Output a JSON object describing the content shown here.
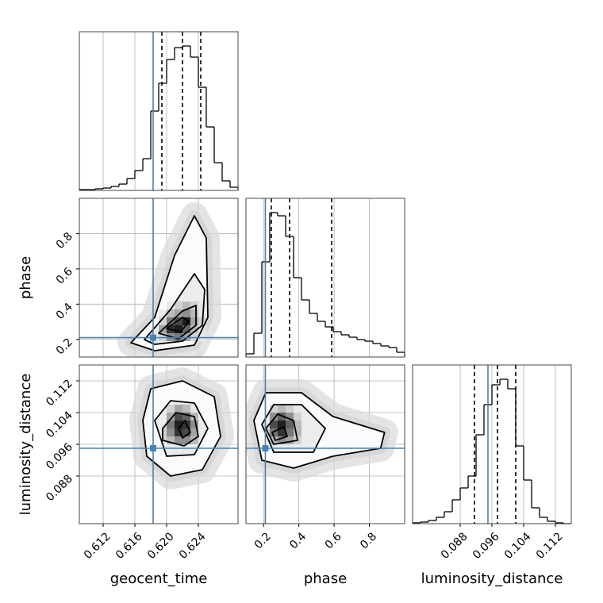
{
  "chart_data": {
    "type": "corner",
    "truth_color": "#4682b4",
    "grid": true,
    "parameters": [
      {
        "name": "geocent_time",
        "lim": [
          0.609,
          0.629
        ],
        "ticks": [
          0.612,
          0.616,
          {
            "value": 0.62,
            "label": "0.620"
          },
          0.624
        ],
        "truth": 0.6183,
        "quantiles": [
          0.6194,
          0.622,
          0.6243
        ],
        "hist_ylim": [
          0,
          200
        ],
        "bins": [
          0.609,
          0.61,
          0.611,
          0.612,
          0.613,
          0.614,
          0.615,
          0.616,
          0.617,
          0.618,
          0.619,
          0.62,
          0.621,
          0.622,
          0.623,
          0.624,
          0.625,
          0.626,
          0.627,
          0.628,
          0.629
        ],
        "counts": [
          1,
          1,
          2,
          3,
          5,
          8,
          15,
          25,
          40,
          100,
          135,
          165,
          180,
          182,
          168,
          130,
          80,
          35,
          12,
          4
        ]
      },
      {
        "name": "phase",
        "lim": [
          0.1,
          1.0
        ],
        "ticks": [
          0.2,
          0.4,
          0.6,
          0.8
        ],
        "truth": 0.21,
        "quantiles": [
          0.244,
          0.3475,
          0.586
        ],
        "hist_ylim": [
          0,
          200
        ],
        "bins": [
          0.1,
          0.145,
          0.19,
          0.235,
          0.28,
          0.325,
          0.37,
          0.415,
          0.46,
          0.505,
          0.55,
          0.595,
          0.64,
          0.685,
          0.73,
          0.775,
          0.82,
          0.865,
          0.91,
          0.955,
          1.0
        ],
        "counts": [
          4,
          30,
          120,
          182,
          178,
          152,
          100,
          72,
          55,
          45,
          38,
          32,
          28,
          25,
          22,
          20,
          17,
          14,
          12,
          6
        ]
      },
      {
        "name": "luminosity_distance",
        "lim": [
          0.076,
          0.116
        ],
        "ticks": [
          0.088,
          0.096,
          0.104,
          0.112
        ],
        "truth": 0.095,
        "quantiles": [
          0.0916,
          0.0974,
          0.102
        ],
        "hist_ylim": [
          0,
          200
        ],
        "bins": [
          0.076,
          0.078,
          0.08,
          0.082,
          0.084,
          0.086,
          0.088,
          0.09,
          0.092,
          0.094,
          0.096,
          0.098,
          0.1,
          0.102,
          0.104,
          0.106,
          0.108,
          0.11,
          0.112,
          0.114,
          0.116
        ],
        "counts": [
          1,
          2,
          4,
          8,
          15,
          30,
          45,
          60,
          112,
          150,
          175,
          182,
          170,
          98,
          55,
          20,
          8,
          3,
          1,
          0
        ]
      }
    ],
    "panels": [
      {
        "x_param": 0,
        "y_param": 1,
        "hist2d": {
          "xedges": [
            0.619,
            0.62,
            0.621,
            0.622,
            0.623,
            0.624,
            0.625
          ],
          "yedges": [
            0.19,
            0.235,
            0.28,
            0.325,
            0.37,
            0.415
          ],
          "counts": [
            [
              0.2,
              0.5,
              0.6,
              0.4,
              0.2,
              0.1
            ],
            [
              0.4,
              0.9,
              1.0,
              0.7,
              0.3,
              0.1
            ],
            [
              0.2,
              0.6,
              0.8,
              1.0,
              0.4,
              0.2
            ],
            [
              0.1,
              0.3,
              0.4,
              0.5,
              0.3,
              0.1
            ],
            [
              0,
              0.1,
              0.2,
              0.3,
              0.2,
              0.1
            ]
          ]
        },
        "contours": [
          {
            "x": [
              0.6155,
              0.6185,
              0.621,
              0.6235,
              0.625,
              0.6252,
              0.6235,
              0.6185
            ],
            "y": [
              0.181,
              0.325,
              0.676,
              0.901,
              0.775,
              0.325,
              0.1675,
              0.136
            ]
          },
          {
            "x": [
              0.6172,
              0.6205,
              0.6235,
              0.6248,
              0.6245,
              0.622,
              0.6185
            ],
            "y": [
              0.199,
              0.37,
              0.5725,
              0.4825,
              0.28,
              0.19,
              0.172
            ]
          },
          {
            "x": [
              0.619,
              0.622,
              0.6237,
              0.6237,
              0.6215
            ],
            "y": [
              0.235,
              0.361,
              0.3925,
              0.28,
              0.2035
            ]
          },
          {
            "x": [
              0.62,
              0.622,
              0.6228,
              0.6218
            ],
            "y": [
              0.262,
              0.325,
              0.3025,
              0.244
            ]
          }
        ]
      },
      {
        "x_param": 0,
        "y_param": 2,
        "hist2d": {
          "xedges": [
            0.62,
            0.621,
            0.622,
            0.623,
            0.624
          ],
          "yedges": [
            0.096,
            0.098,
            0.1,
            0.102,
            0.104,
            0.106
          ],
          "counts": [
            [
              0.3,
              0.5,
              0.5,
              0.3
            ],
            [
              0.5,
              0.9,
              0.8,
              0.4
            ],
            [
              0.6,
              1.0,
              0.9,
              0.5
            ],
            [
              0.4,
              0.8,
              0.7,
              0.3
            ],
            [
              0.2,
              0.4,
              0.3,
              0.1
            ]
          ]
        },
        "contours": [
          {
            "x": [
              0.617,
              0.618,
              0.622,
              0.626,
              0.6268,
              0.6245,
              0.6205,
              0.6175
            ],
            "y": [
              0.102,
              0.11,
              0.112,
              0.108,
              0.098,
              0.0896,
              0.088,
              0.093
            ]
          },
          {
            "x": [
              0.6185,
              0.6205,
              0.6235,
              0.6252,
              0.6235,
              0.62
            ],
            "y": [
              0.102,
              0.107,
              0.1064,
              0.1,
              0.0934,
              0.093
            ]
          },
          {
            "x": [
              0.6195,
              0.6212,
              0.6235,
              0.624,
              0.6222,
              0.6195
            ],
            "y": [
              0.1,
              0.104,
              0.103,
              0.098,
              0.0956,
              0.097
            ]
          },
          {
            "x": [
              0.6215,
              0.6223,
              0.623,
              0.622
            ],
            "y": [
              0.1,
              0.102,
              0.099,
              0.0976
            ]
          }
        ]
      },
      {
        "x_param": 1,
        "y_param": 2,
        "hist2d": {
          "xedges": [
            0.235,
            0.28,
            0.325,
            0.37,
            0.415
          ],
          "yedges": [
            0.096,
            0.098,
            0.1,
            0.102,
            0.104,
            0.106
          ],
          "counts": [
            [
              0.3,
              0.5,
              0.4,
              0.2
            ],
            [
              0.6,
              0.9,
              0.6,
              0.3
            ],
            [
              0.8,
              1.0,
              0.7,
              0.3
            ],
            [
              0.5,
              0.7,
              0.5,
              0.2
            ],
            [
              0.2,
              0.3,
              0.2,
              0.1
            ]
          ]
        },
        "contours": [
          {
            "x": [
              0.145,
              0.2125,
              0.415,
              0.5935,
              0.886,
              0.8635,
              0.5935,
              0.37,
              0.19
            ],
            "y": [
              0.102,
              0.109,
              0.109,
              0.103,
              0.099,
              0.095,
              0.093,
              0.09,
              0.092
            ]
          },
          {
            "x": [
              0.19,
              0.2575,
              0.415,
              0.55,
              0.4825,
              0.2575
            ],
            "y": [
              0.101,
              0.106,
              0.106,
              0.1,
              0.094,
              0.094
            ]
          },
          {
            "x": [
              0.2125,
              0.28,
              0.37,
              0.3925,
              0.2575
            ],
            "y": [
              0.1,
              0.1036,
              0.102,
              0.097,
              0.096
            ]
          },
          {
            "x": [
              0.2485,
              0.316,
              0.334,
              0.2665
            ],
            "y": [
              0.099,
              0.1004,
              0.098,
              0.097
            ]
          }
        ]
      }
    ]
  }
}
